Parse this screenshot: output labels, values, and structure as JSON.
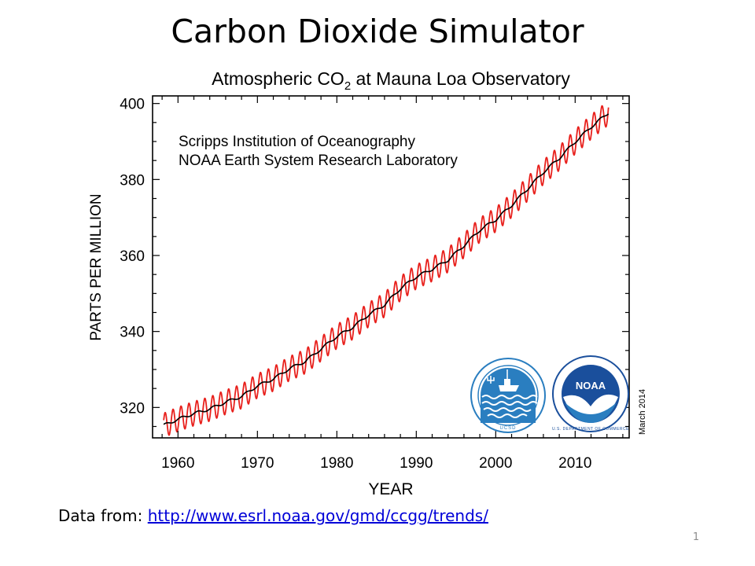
{
  "slide": {
    "title": "Carbon Dioxide Simulator",
    "page_number": "1",
    "source_prefix": "Data from: ",
    "source_url": "http://www.esrl.noaa.gov/gmd/ccgg/trends/"
  },
  "chart_data": {
    "type": "line",
    "title": "Atmospheric CO",
    "title_subscript": "2",
    "title_suffix": " at Mauna Loa Observatory",
    "annotations": [
      "Scripps Institution of Oceanography",
      "NOAA Earth System Research Laboratory"
    ],
    "side_note": "March 2014",
    "xlabel": "YEAR",
    "ylabel": "PARTS PER MILLION",
    "xlim": [
      1956.8,
      2016.8
    ],
    "ylim": [
      312,
      402
    ],
    "xticks": [
      1960,
      1970,
      1980,
      1990,
      2000,
      2010
    ],
    "yticks": [
      320,
      340,
      360,
      380,
      400
    ],
    "grid": false,
    "colors": {
      "monthly": "#e8201c",
      "trend": "#000000",
      "noaa_blue": "#1a4f9c",
      "scripps_blue": "#2a7ec0"
    },
    "logos": [
      "scripps-ucsd-logo",
      "noaa-logo"
    ],
    "series": [
      {
        "style": "seasonal",
        "amplitude": 3.2,
        "x": [
          1958.2,
          1960,
          1962,
          1964,
          1966,
          1968,
          1970,
          1972,
          1974,
          1976,
          1978,
          1980,
          1982,
          1984,
          1986,
          1988,
          1990,
          1992,
          1994,
          1996,
          1998,
          2000,
          2002,
          2004,
          2006,
          2008,
          2010,
          2012,
          2014.2
        ],
        "y": [
          315.3,
          316.9,
          318.4,
          319.6,
          321.4,
          322.9,
          325.7,
          327.5,
          330.2,
          332.1,
          335.4,
          338.7,
          341.1,
          344.4,
          347.0,
          351.3,
          354.4,
          356.4,
          358.8,
          362.6,
          366.7,
          369.4,
          373.2,
          377.5,
          381.9,
          385.6,
          389.9,
          393.8,
          397.6
        ]
      },
      {
        "style": "trend",
        "x": [
          1958.2,
          1960,
          1962,
          1964,
          1966,
          1968,
          1970,
          1972,
          1974,
          1976,
          1978,
          1980,
          1982,
          1984,
          1986,
          1988,
          1990,
          1992,
          1994,
          1996,
          1998,
          2000,
          2002,
          2004,
          2006,
          2008,
          2010,
          2012,
          2014.2
        ],
        "y": [
          315.3,
          316.9,
          318.4,
          319.6,
          321.4,
          322.9,
          325.7,
          327.5,
          330.2,
          332.1,
          335.4,
          338.7,
          341.1,
          344.4,
          347.0,
          351.3,
          354.4,
          356.4,
          358.8,
          362.6,
          366.7,
          369.4,
          373.2,
          377.5,
          381.9,
          385.6,
          389.9,
          393.8,
          397.6
        ]
      }
    ]
  }
}
